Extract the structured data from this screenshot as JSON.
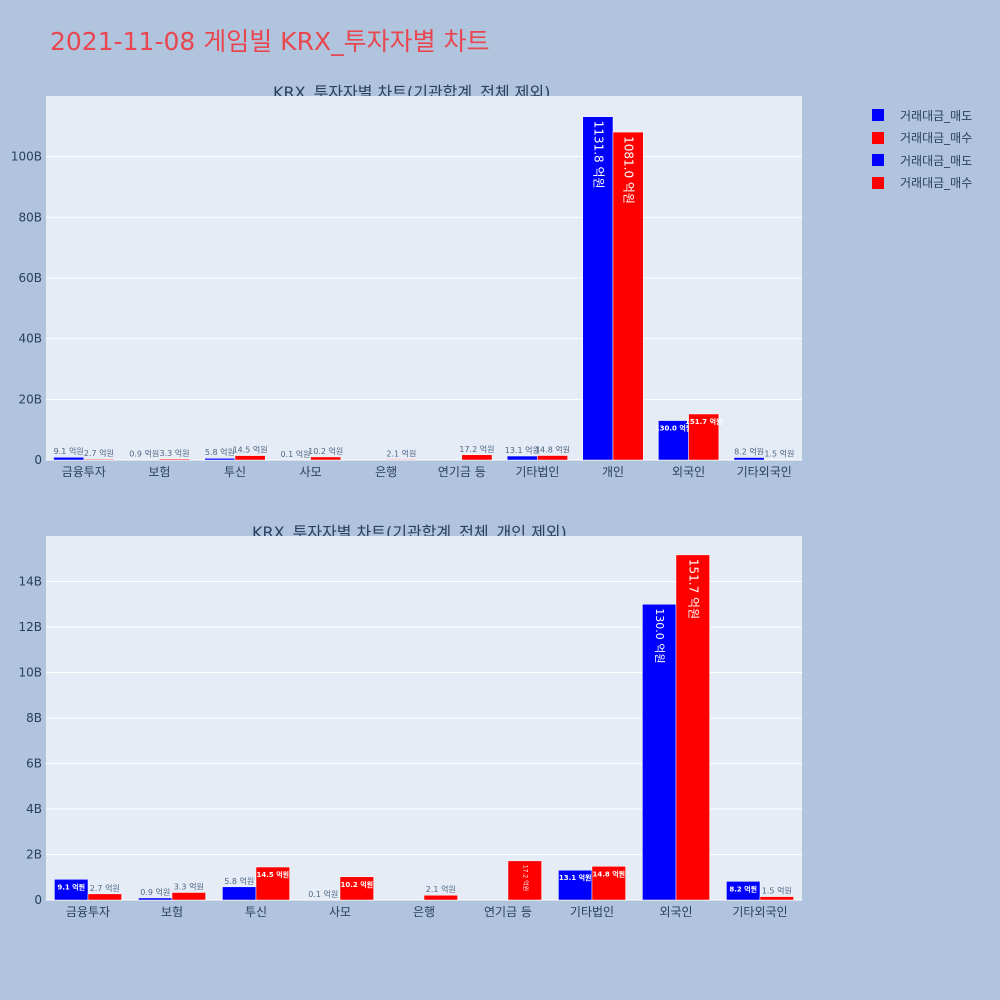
{
  "title": "2021-11-08 게임빌 KRX_투자자별 차트",
  "colors": {
    "sell": "#0000ff",
    "buy": "#ff0000",
    "title": "#e8474f",
    "plot_bg": "#e5ecf6",
    "page_bg": "#b0c4de"
  },
  "legend": [
    {
      "label": "거래대금_매도",
      "color": "#0000ff"
    },
    {
      "label": "거래대금_매수",
      "color": "#ff0000"
    },
    {
      "label": "거래대금_매도",
      "color": "#0000ff"
    },
    {
      "label": "거래대금_매수",
      "color": "#ff0000"
    }
  ],
  "chart_data": [
    {
      "type": "bar",
      "title": "KRX_투자자별 차트(기관합계_전체 제외)",
      "categories": [
        "금융투자",
        "보험",
        "투신",
        "사모",
        "은행",
        "연기금 등",
        "기타법인",
        "개인",
        "외국인",
        "기타외국인"
      ],
      "yticks": [
        "0",
        "20B",
        "40B",
        "60B",
        "80B",
        "100B"
      ],
      "ylim": [
        0,
        120
      ],
      "y_unit": "B (십억원)",
      "series": [
        {
          "name": "거래대금_매도",
          "color": "#0000ff",
          "values": [
            0.91,
            0.09,
            0.58,
            0.01,
            0,
            0,
            1.31,
            113.18,
            13.0,
            0.82
          ],
          "labels": [
            "9.1 억원",
            "0.9 억원",
            "5.8 억원",
            "0.1 억원",
            "",
            "",
            "13.1 억원",
            "1131.8 억원",
            "130.0 억원",
            "8.2 억원"
          ]
        },
        {
          "name": "거래대금_매수",
          "color": "#ff0000",
          "values": [
            0.27,
            0.33,
            1.45,
            1.02,
            0.21,
            1.72,
            1.48,
            108.1,
            15.17,
            0.15
          ],
          "labels": [
            "2.7 억원",
            "3.3 억원",
            "14.5 억원",
            "10.2 억원",
            "2.1 억원",
            "17.2 억원",
            "14.8 억원",
            "1081.0 억원",
            "151.7 억원",
            "1.5 억원"
          ]
        }
      ]
    },
    {
      "type": "bar",
      "title": "KRX_투자자별 차트(기관합계_전체_개인 제외)",
      "categories": [
        "금융투자",
        "보험",
        "투신",
        "사모",
        "은행",
        "연기금 등",
        "기타법인",
        "외국인",
        "기타외국인"
      ],
      "yticks": [
        "0",
        "2B",
        "4B",
        "6B",
        "8B",
        "10B",
        "12B",
        "14B"
      ],
      "ylim": [
        0,
        16
      ],
      "y_unit": "B (십억원)",
      "series": [
        {
          "name": "거래대금_매도",
          "color": "#0000ff",
          "values": [
            0.91,
            0.09,
            0.58,
            0.01,
            0,
            0,
            1.31,
            13.0,
            0.82
          ],
          "labels": [
            "9.1 억원",
            "0.9 억원",
            "5.8 억원",
            "0.1 억원",
            "",
            "",
            "13.1 억원",
            "130.0 억원",
            "8.2 억원"
          ]
        },
        {
          "name": "거래대금_매수",
          "color": "#ff0000",
          "values": [
            0.27,
            0.33,
            1.45,
            1.02,
            0.21,
            1.72,
            1.48,
            15.17,
            0.15
          ],
          "labels": [
            "2.7 억원",
            "3.3 억원",
            "14.5 억원",
            "10.2 억원",
            "2.1 억원",
            "17.2 억원",
            "14.8 억원",
            "151.7 억원",
            "1.5 억원"
          ]
        }
      ]
    }
  ]
}
